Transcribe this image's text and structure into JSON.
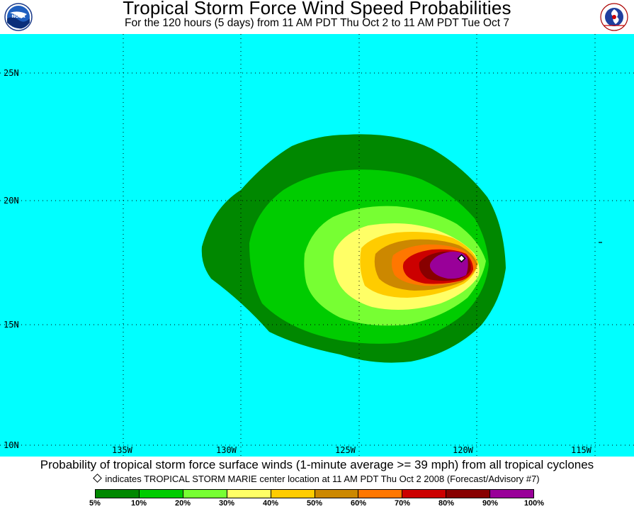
{
  "header": {
    "title": "Tropical Storm Force Wind Speed Probabilities",
    "subtitle": "For the 120 hours (5 days) from 11 AM PDT Thu Oct 2 to 11 AM PDT Tue Oct 7",
    "left_logo": "noaa-logo",
    "right_logo": "nws-logo"
  },
  "map": {
    "background_color": "#00ffff",
    "lat_labels": [
      "25N",
      "20N",
      "15N",
      "10N"
    ],
    "lon_labels": [
      "135W",
      "130W",
      "125W",
      "120W",
      "115W"
    ],
    "grid": "dotted",
    "storm_center": {
      "lat": 17.6,
      "lon": -119.6
    }
  },
  "footer": {
    "caption": "Probability of tropical storm force surface winds (1-minute average >= 39 mph) from all tropical cyclones",
    "note": "indicates TROPICAL STORM MARIE center location at 11 AM PDT Thu Oct 2 2008 (Forecast/Advisory #7)"
  },
  "legend": {
    "colors": [
      "#008800",
      "#00cc00",
      "#77ff33",
      "#ffff66",
      "#ffcc00",
      "#cc8800",
      "#ff7700",
      "#cc0000",
      "#880000",
      "#990099"
    ],
    "labels": [
      "5%",
      "10%",
      "20%",
      "30%",
      "40%",
      "50%",
      "60%",
      "70%",
      "80%",
      "90%",
      "100%"
    ]
  },
  "probability_colors": {
    "p5": "#008800",
    "p10": "#00cc00",
    "p20": "#77ff33",
    "p30": "#ffff66",
    "p40": "#ffcc00",
    "p50": "#cc8800",
    "p60": "#ff7700",
    "p70": "#cc0000",
    "p80": "#880000",
    "p90": "#990099"
  }
}
